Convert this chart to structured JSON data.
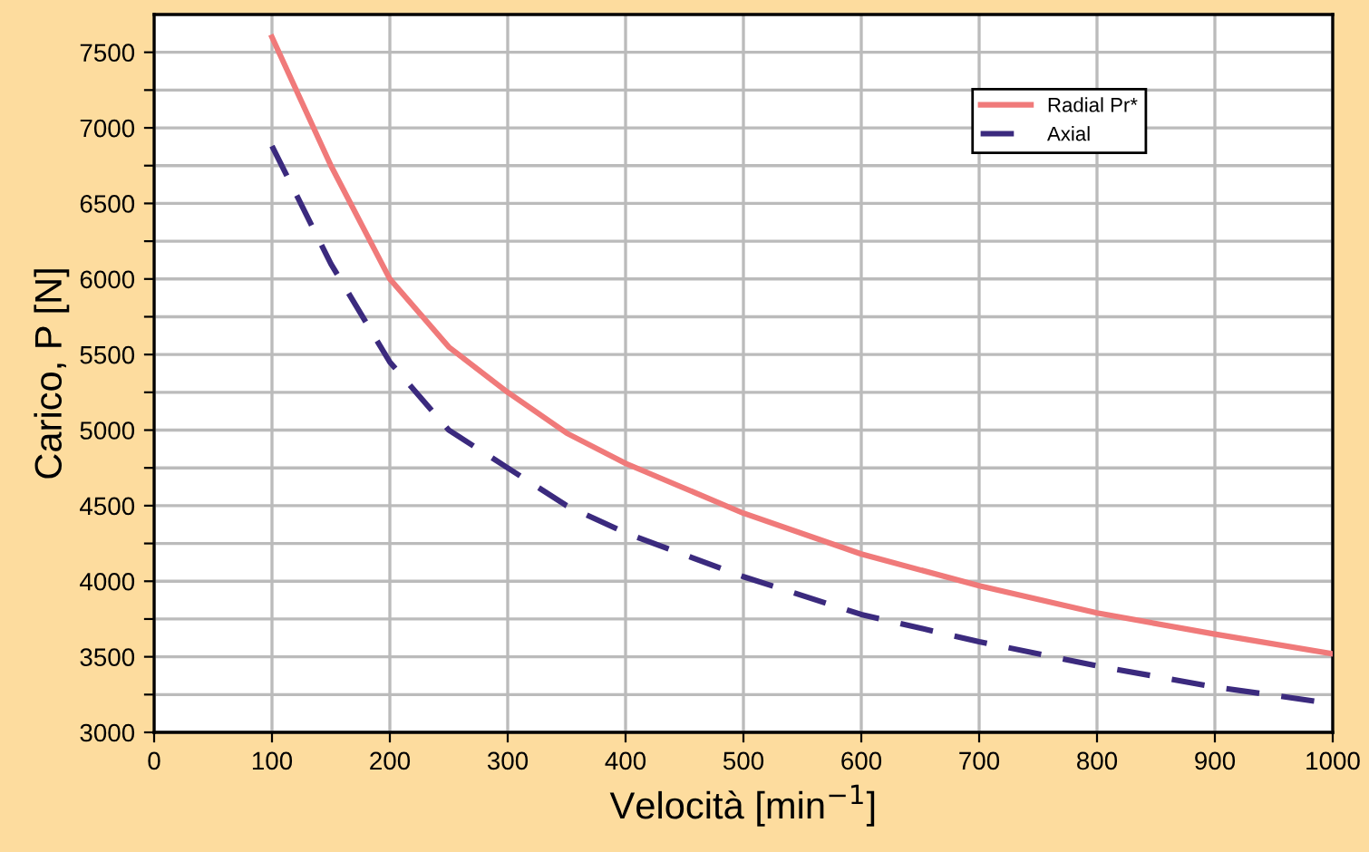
{
  "chart_data": {
    "type": "line",
    "xlabel": "Velocità [min$^{−1}$]",
    "ylabel": "Carico, P [N]",
    "xlim": [
      0,
      1000
    ],
    "xticks": [
      0,
      100,
      200,
      300,
      400,
      500,
      600,
      700,
      800,
      900,
      1000
    ],
    "ylim": [
      3000,
      7750
    ],
    "yticks": [
      3000,
      {
        "value": 3250,
        "label": null
      },
      3500,
      {
        "value": 3750,
        "label": null
      },
      4000,
      {
        "value": 4250,
        "label": null
      },
      4500,
      {
        "value": 4750,
        "label": null
      },
      5000,
      {
        "value": 5250,
        "label": null
      },
      5500,
      {
        "value": 5750,
        "label": null
      },
      6000,
      {
        "value": 6250,
        "label": null
      },
      6500,
      {
        "value": 6750,
        "label": null
      },
      7000,
      {
        "value": 7250,
        "label": null
      },
      7500
    ],
    "grid": true,
    "legend": "top right",
    "x": [
      100,
      150,
      200,
      250,
      300,
      350,
      400,
      500,
      600,
      700,
      800,
      900,
      1000
    ],
    "series": [
      {
        "name": "Radial Pr*",
        "color": "#f07a7a",
        "line_style": "solid",
        "values": [
          7600,
          6750,
          6000,
          5550,
          5250,
          4980,
          4780,
          4450,
          4180,
          3970,
          3790,
          3650,
          3520
        ]
      },
      {
        "name": "Axial",
        "color": "#3b2a7e",
        "line_style": "dashed",
        "values": [
          6880,
          6100,
          5450,
          5000,
          4750,
          4500,
          4320,
          4030,
          3780,
          3600,
          3440,
          3300,
          3190
        ]
      }
    ]
  }
}
